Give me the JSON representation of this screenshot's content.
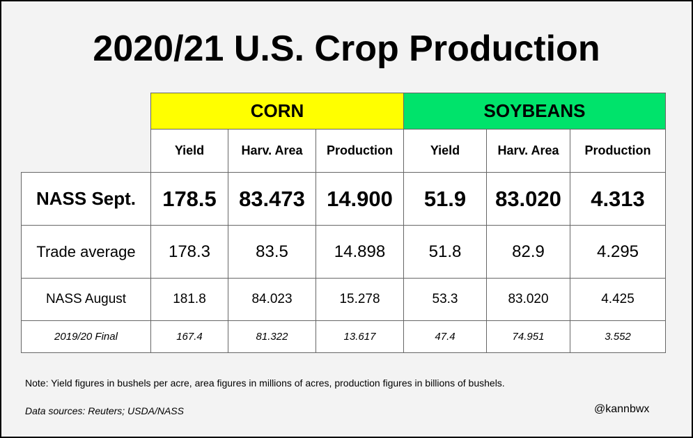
{
  "title": "2020/21 U.S. Crop Production",
  "table": {
    "groups": [
      "CORN",
      "SOYBEANS"
    ],
    "columns": [
      "Yield",
      "Harv. Area",
      "Production",
      "Yield",
      "Harv. Area",
      "Production"
    ],
    "rows": [
      {
        "label": "NASS Sept.",
        "values": [
          "178.5",
          "83.473",
          "14.900",
          "51.9",
          "83.020",
          "4.313"
        ]
      },
      {
        "label": "Trade average",
        "values": [
          "178.3",
          "83.5",
          "14.898",
          "51.8",
          "82.9",
          "4.295"
        ]
      },
      {
        "label": "NASS August",
        "values": [
          "181.8",
          "84.023",
          "15.278",
          "53.3",
          "83.020",
          "4.425"
        ]
      },
      {
        "label": "2019/20 Final",
        "values": [
          "167.4",
          "81.322",
          "13.617",
          "47.4",
          "74.951",
          "3.552"
        ]
      }
    ]
  },
  "note": "Note: Yield figures in bushels per acre, area figures in millions of acres, production figures in billions of bushels.",
  "source": "Data sources: Reuters; USDA/NASS",
  "handle": "@kannbwx"
}
